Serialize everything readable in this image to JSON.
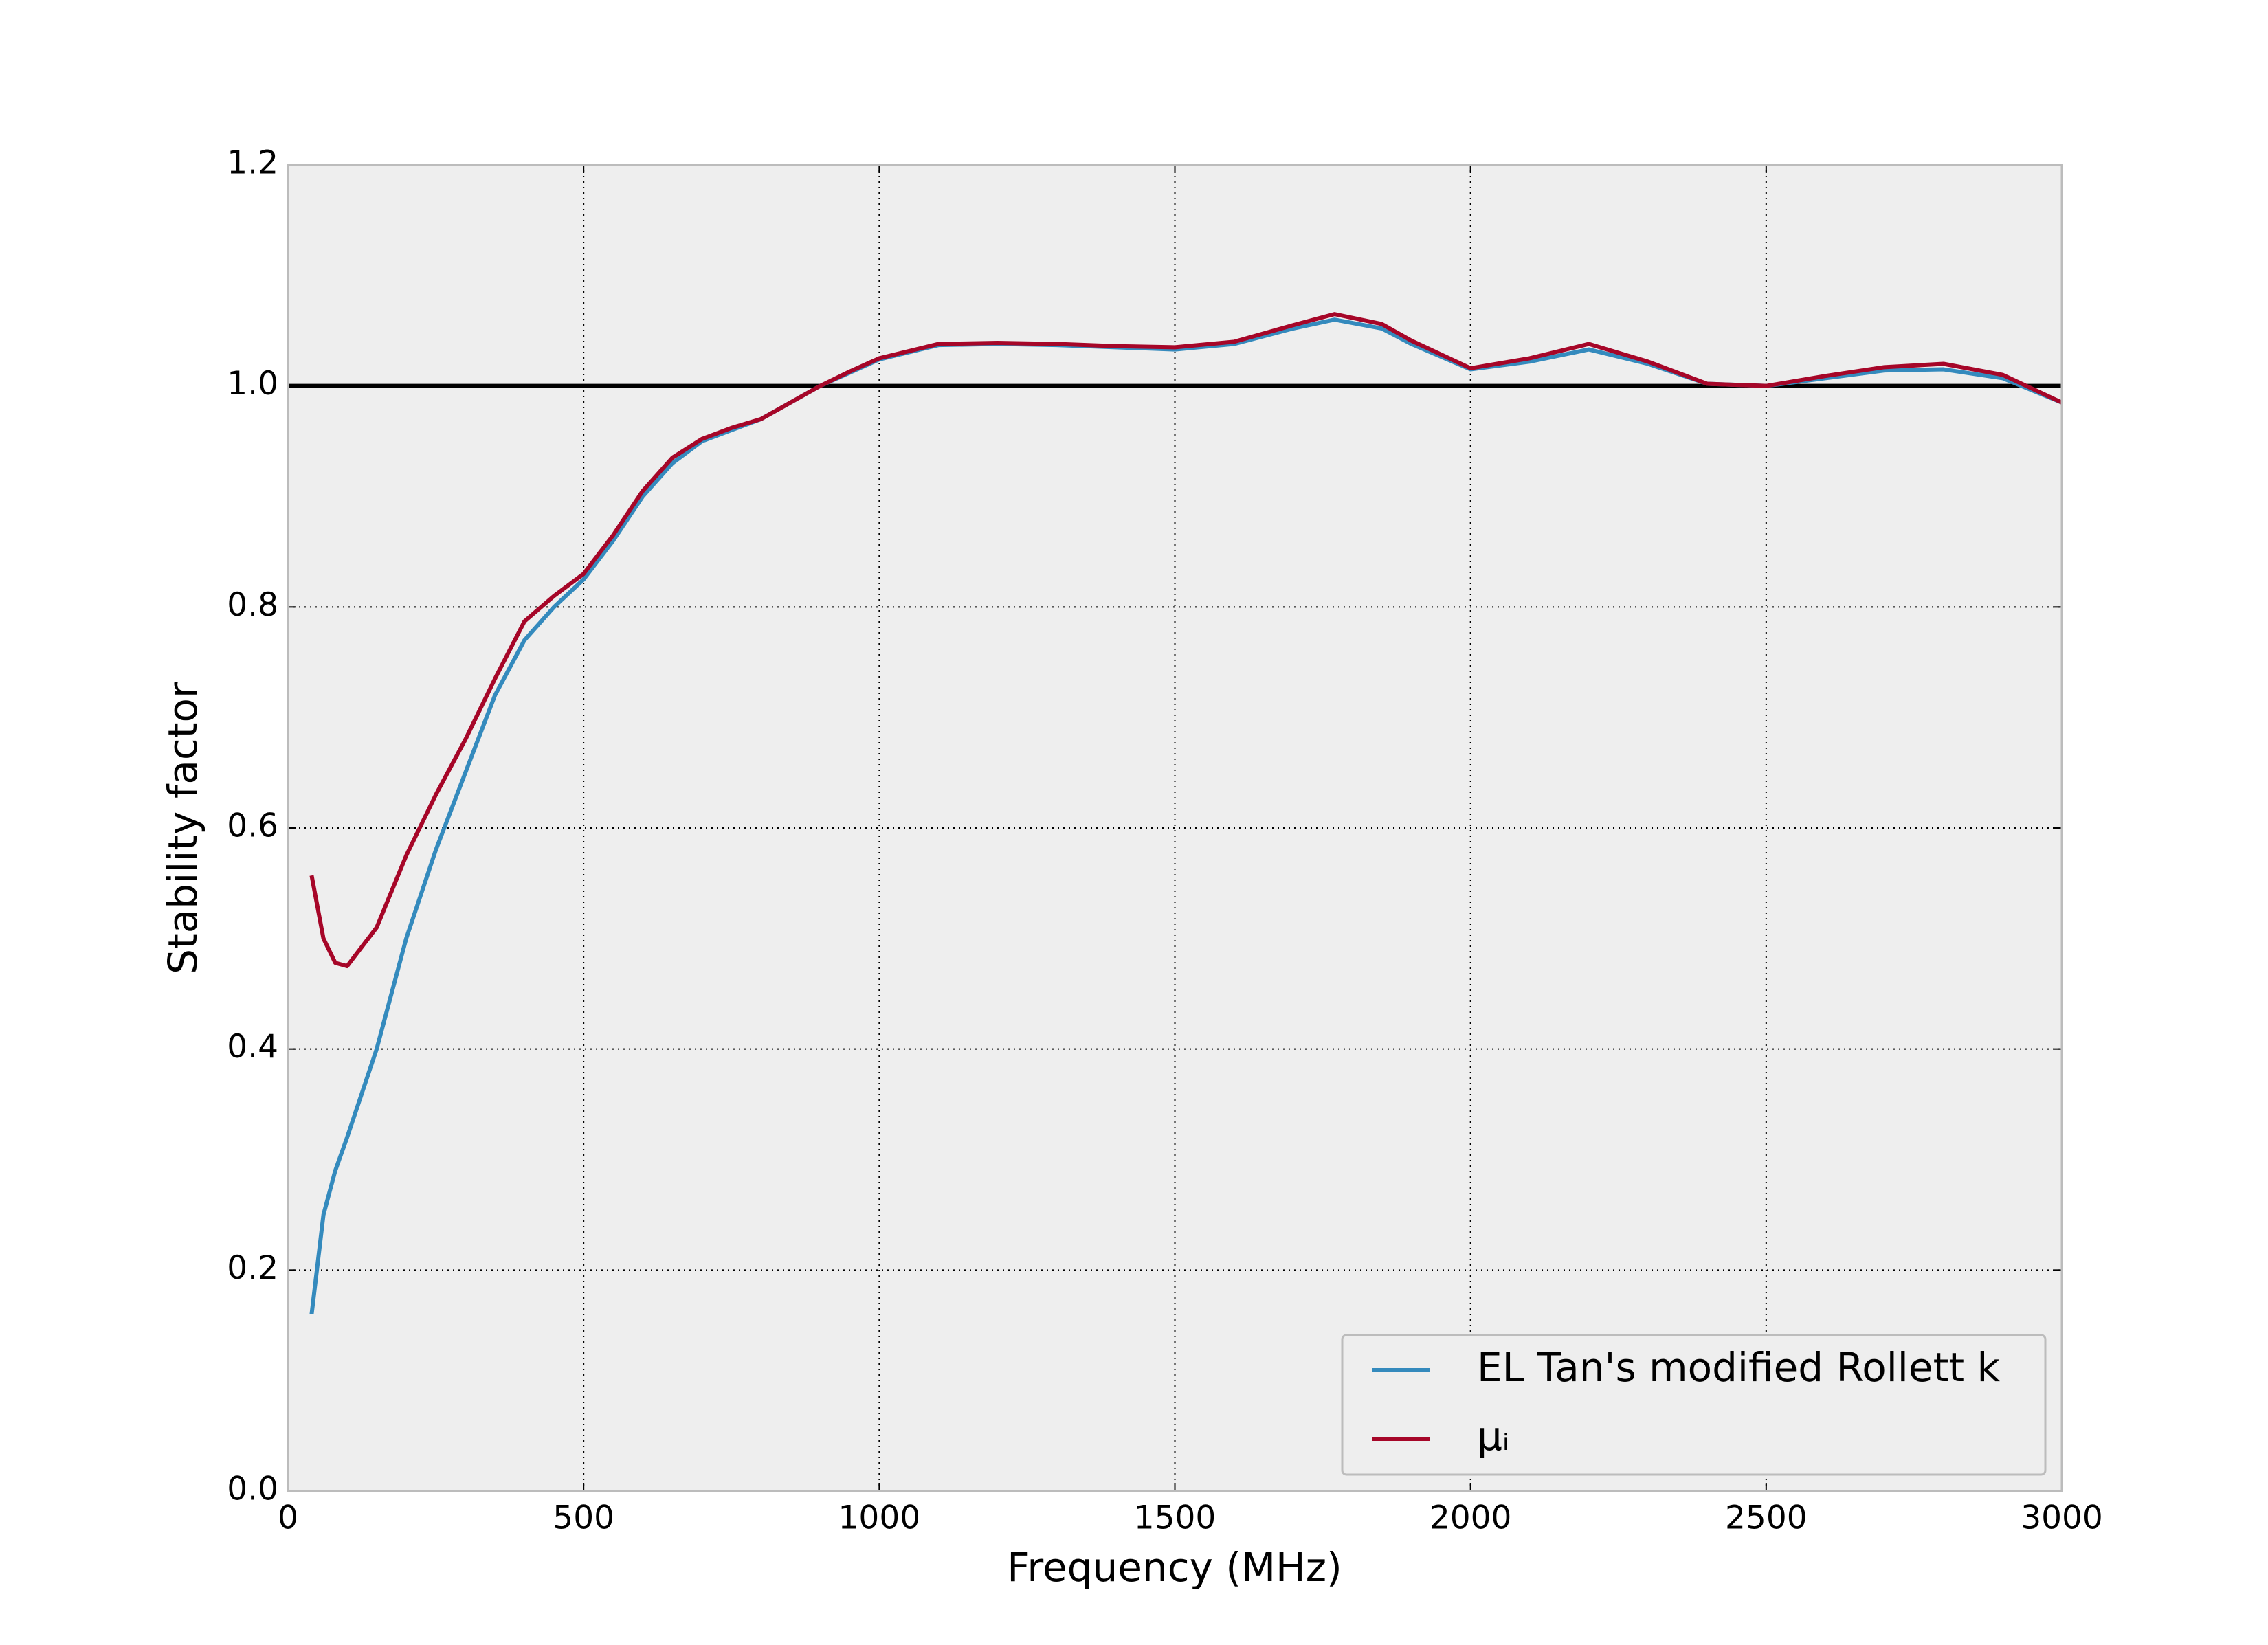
{
  "chart_data": {
    "type": "line",
    "xlabel": "Frequency (MHz)",
    "ylabel": "Stability factor",
    "x": [
      40,
      60,
      80,
      100,
      150,
      200,
      250,
      300,
      350,
      400,
      450,
      500,
      550,
      600,
      650,
      700,
      750,
      800,
      850,
      900,
      950,
      1000,
      1100,
      1200,
      1300,
      1400,
      1500,
      1600,
      1700,
      1770,
      1850,
      1900,
      2000,
      2100,
      2200,
      2300,
      2400,
      2500,
      2600,
      2700,
      2800,
      2900,
      3000
    ],
    "series": [
      {
        "name": "EL Tan's modified Rollett k",
        "color": "#348abd",
        "values": [
          0.16,
          0.25,
          0.29,
          0.32,
          0.4,
          0.5,
          0.58,
          0.65,
          0.72,
          0.77,
          0.8,
          0.825,
          0.86,
          0.9,
          0.93,
          0.95,
          0.96,
          0.97,
          0.985,
          1.0,
          1.012,
          1.024,
          1.037,
          1.038,
          1.037,
          1.035,
          1.033,
          1.038,
          1.052,
          1.06,
          1.052,
          1.038,
          1.015,
          1.022,
          1.033,
          1.02,
          1.002,
          1.0,
          1.007,
          1.014,
          1.015,
          1.007,
          0.985
        ]
      },
      {
        "name": "μᵢ",
        "color": "#a60628",
        "values": [
          0.557,
          0.5,
          0.478,
          0.475,
          0.51,
          0.575,
          0.63,
          0.68,
          0.735,
          0.787,
          0.81,
          0.83,
          0.865,
          0.905,
          0.935,
          0.952,
          0.962,
          0.97,
          0.985,
          1.0,
          1.013,
          1.025,
          1.038,
          1.039,
          1.038,
          1.036,
          1.035,
          1.04,
          1.055,
          1.065,
          1.056,
          1.041,
          1.016,
          1.025,
          1.038,
          1.022,
          1.002,
          1.0,
          1.009,
          1.017,
          1.02,
          1.01,
          0.985
        ]
      }
    ],
    "hline": {
      "value": 1.0,
      "color": "#000000"
    },
    "xlim": [
      0,
      3000
    ],
    "xticks": [
      0,
      500,
      1000,
      1500,
      2000,
      2500,
      3000
    ],
    "ylim": [
      0,
      1.2
    ],
    "yticks": [
      {
        "value": 0,
        "label": "0.0"
      },
      0.2,
      0.4,
      0.6,
      0.8,
      {
        "value": 1,
        "label": "1.0"
      },
      1.2
    ],
    "grid": true,
    "legend": "lower right"
  }
}
